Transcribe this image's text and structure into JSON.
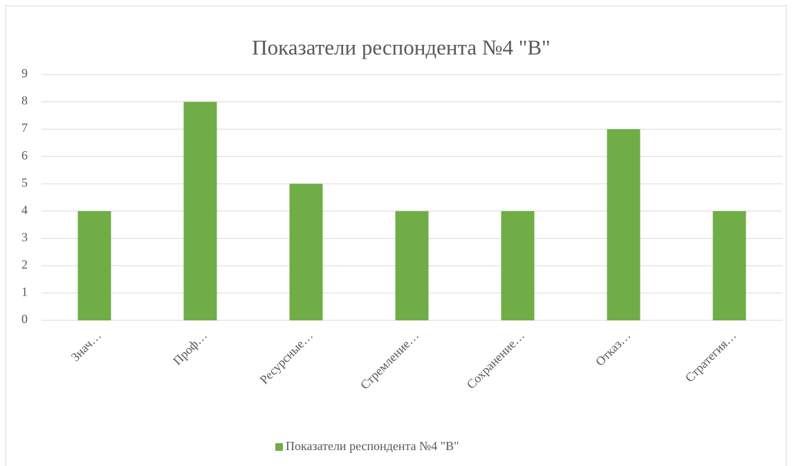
{
  "chart_data": {
    "type": "bar",
    "title": "Показатели респондента №4 \"В\"",
    "categories": [
      "Знач…",
      "Проф…",
      "Ресурсные…",
      "Стремление…",
      "Сохранение…",
      "Отказ…",
      "Стратегия…"
    ],
    "series": [
      {
        "name": "Показатели респондента №4 \"В\"",
        "color": "#70ad47",
        "values": [
          4,
          8,
          5,
          4,
          4,
          7,
          4
        ]
      }
    ],
    "ylim": [
      0,
      9
    ],
    "yticks": [
      0,
      1,
      2,
      3,
      4,
      5,
      6,
      7,
      8,
      9
    ],
    "grid": true,
    "legend": "bottom"
  }
}
